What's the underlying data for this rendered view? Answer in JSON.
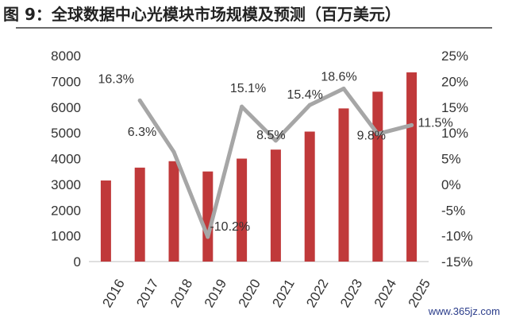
{
  "header": {
    "title": "图 9：全球数据中心光模块市场规模及预测（百万美元）"
  },
  "watermark": "www.365jz.com",
  "colors": {
    "bar": "#c0393a",
    "line": "#a6a6a6",
    "axis": "#bfbfbf"
  },
  "chart_data": {
    "type": "bar",
    "title": "图 9：全球数据中心光模块市场规模及预测（百万美元）",
    "xlabel": "",
    "ylabel": "",
    "grid": false,
    "legend": "none",
    "categories": [
      "2016",
      "2017",
      "2018",
      "2019",
      "2020",
      "2021",
      "2022",
      "2023",
      "2024",
      "2025"
    ],
    "y_left_ticks": [
      "0",
      "1000",
      "2000",
      "3000",
      "4000",
      "5000",
      "6000",
      "7000",
      "8000"
    ],
    "y_left_lim": [
      0,
      8000
    ],
    "y_right_ticks": [
      "-15%",
      "-10%",
      "-5%",
      "0%",
      "5%",
      "10%",
      "15%",
      "20%",
      "25%"
    ],
    "y_right_lim": [
      -15,
      25
    ],
    "series": [
      {
        "type": "bar",
        "axis": "left",
        "values": [
          3150,
          3650,
          3900,
          3500,
          4000,
          4350,
          5050,
          5950,
          6600,
          7350
        ]
      },
      {
        "type": "line",
        "axis": "right",
        "values": [
          null,
          16.3,
          6.3,
          -10.2,
          15.1,
          8.5,
          15.4,
          18.6,
          9.8,
          11.5
        ],
        "labels": [
          "",
          "16.3%",
          "6.3%",
          "-10.2%",
          "15.1%",
          "8.5%",
          "15.4%",
          "18.6%",
          "9.8%",
          "11.5%"
        ]
      }
    ]
  }
}
